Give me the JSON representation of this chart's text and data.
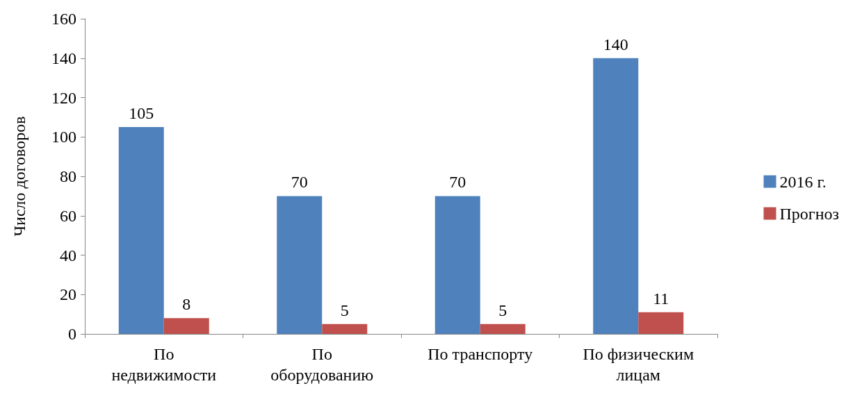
{
  "chart_data": {
    "type": "bar",
    "ylabel": "Число договоров",
    "categories": [
      "По недвижимости",
      "По оборудованию",
      "По транспорту",
      "По физическим лицам"
    ],
    "series": [
      {
        "name": "2016 г.",
        "color": "#4f81bd",
        "values": [
          105,
          70,
          70,
          140
        ]
      },
      {
        "name": "Прогноз",
        "color": "#c0504d",
        "values": [
          8,
          5,
          5,
          11
        ]
      }
    ],
    "ylim": [
      0,
      160
    ],
    "yticks": [
      0,
      20,
      40,
      60,
      80,
      100,
      120,
      140,
      160
    ],
    "grid": false,
    "legend": "right",
    "data_labels": true
  }
}
